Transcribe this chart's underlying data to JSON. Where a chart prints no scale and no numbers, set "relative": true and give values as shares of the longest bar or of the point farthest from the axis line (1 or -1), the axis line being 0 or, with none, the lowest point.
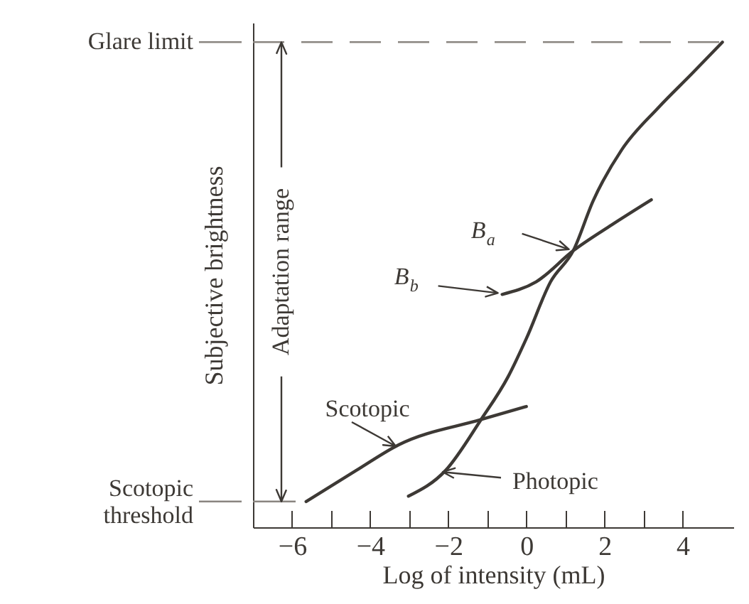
{
  "chart_data": {
    "type": "line",
    "relative": true,
    "xlabel": "Log of intensity (mL)",
    "ylabel": "Subjective brightness",
    "xlim": [
      -7,
      5.3
    ],
    "xticks": [
      -6,
      {
        "value": -5,
        "label": null
      },
      -4,
      {
        "value": -3,
        "label": null
      },
      -2,
      {
        "value": -1,
        "label": null
      },
      0,
      {
        "value": 1,
        "label": null
      },
      2,
      {
        "value": 3,
        "label": null
      },
      4
    ],
    "tick_labels": "x",
    "marker": "none",
    "line_style": "solid",
    "series": [
      {
        "name": "Scotopic",
        "color": "#3d3935",
        "x": [
          -5.64,
          -4.36,
          -3.27,
          -1.16,
          0
        ],
        "values": [
          0.053,
          0.117,
          0.17,
          0.222,
          0.249
        ]
      },
      {
        "name": "Photopic",
        "color": "#3d3935",
        "x": [
          -3.02,
          -2.07,
          -1.16,
          -0.47,
          0,
          0.62,
          1.2,
          1.71,
          2.44,
          3.38,
          4.25,
          5.02
        ],
        "values": [
          0.064,
          0.117,
          0.222,
          0.31,
          0.389,
          0.506,
          0.57,
          0.673,
          0.778,
          0.865,
          0.936,
          1.0
        ]
      },
      {
        "color": "#3d3935",
        "x": [
          -0.62,
          0.25,
          1.2,
          2.18,
          3.2
        ],
        "values": [
          0.48,
          0.506,
          0.57,
          0.623,
          0.675
        ]
      }
    ],
    "ref_lines": [
      {
        "axis": "y",
        "value": 1.0,
        "label": "Glare limit",
        "line_style": "dashed",
        "color": "#8a8580"
      },
      {
        "axis": "y",
        "value": 0.053,
        "label": "Scotopic threshold",
        "line_style": "solid",
        "color": "#8a8580"
      }
    ],
    "annotations": [
      "B$_{a}$",
      "B$_{b}$",
      "Adaptation range"
    ]
  }
}
